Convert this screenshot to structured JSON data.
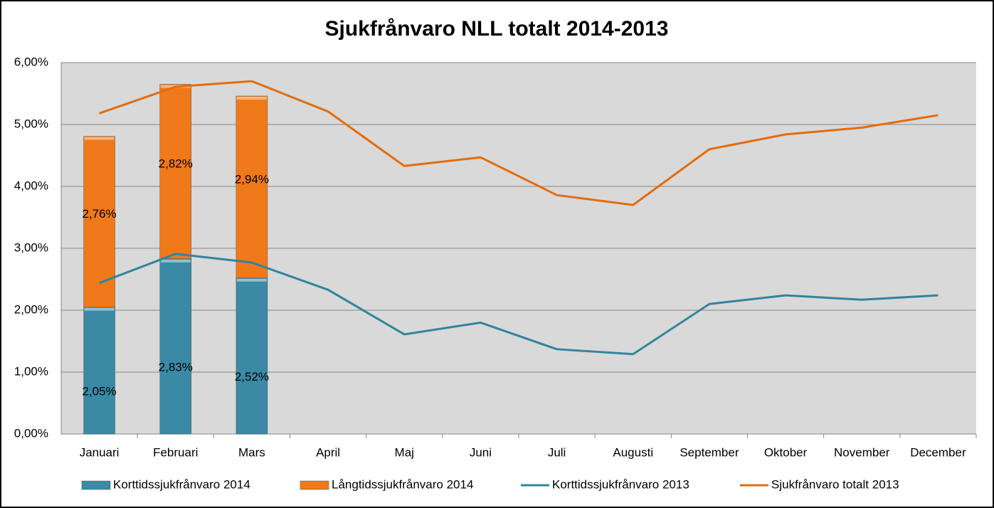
{
  "chart_data": {
    "type": "bar",
    "stacked": true,
    "title": "Sjukfrånvaro NLL totalt 2014-2013",
    "categories": [
      "Januari",
      "Februari",
      "Mars",
      "April",
      "Maj",
      "Juni",
      "Juli",
      "Augusti",
      "September",
      "Oktober",
      "November",
      "December"
    ],
    "series": [
      {
        "name": "Korttidssjukfrånvaro 2014",
        "type": "bar",
        "color": "#3a8aa6",
        "values": [
          2.05,
          2.83,
          2.52,
          null,
          null,
          null,
          null,
          null,
          null,
          null,
          null,
          null
        ],
        "value_labels": [
          "2,05%",
          "2,83%",
          "2,52%",
          null,
          null,
          null,
          null,
          null,
          null,
          null,
          null,
          null
        ]
      },
      {
        "name": "Långtidssjukfrånvaro 2014",
        "type": "bar",
        "color": "#f0791a",
        "values": [
          2.76,
          2.82,
          2.94,
          null,
          null,
          null,
          null,
          null,
          null,
          null,
          null,
          null
        ],
        "value_labels": [
          "2,76%",
          "2,82%",
          "2,94%",
          null,
          null,
          null,
          null,
          null,
          null,
          null,
          null,
          null
        ]
      },
      {
        "name": "Korttidssjukfrånvaro 2013",
        "type": "line",
        "color": "#31849b",
        "values": [
          2.44,
          2.91,
          2.77,
          2.33,
          1.61,
          1.8,
          1.37,
          1.29,
          2.1,
          2.24,
          2.17,
          2.24
        ]
      },
      {
        "name": "Sjukfrånvaro totalt 2013",
        "type": "line",
        "color": "#e46c0a",
        "values": [
          5.18,
          5.61,
          5.7,
          5.21,
          4.33,
          4.47,
          3.86,
          3.7,
          4.6,
          4.84,
          4.95,
          5.15
        ]
      }
    ],
    "ylim": [
      0,
      6
    ],
    "yticks": [
      {
        "value": 0,
        "label": "0,00%"
      },
      {
        "value": 1,
        "label": "1,00%"
      },
      {
        "value": 2,
        "label": "2,00%"
      },
      {
        "value": 3,
        "label": "3,00%"
      },
      {
        "value": 4,
        "label": "4,00%"
      },
      {
        "value": 5,
        "label": "5,00%"
      },
      {
        "value": 6,
        "label": "6,00%"
      }
    ],
    "grid": true,
    "legend": "bottom"
  }
}
